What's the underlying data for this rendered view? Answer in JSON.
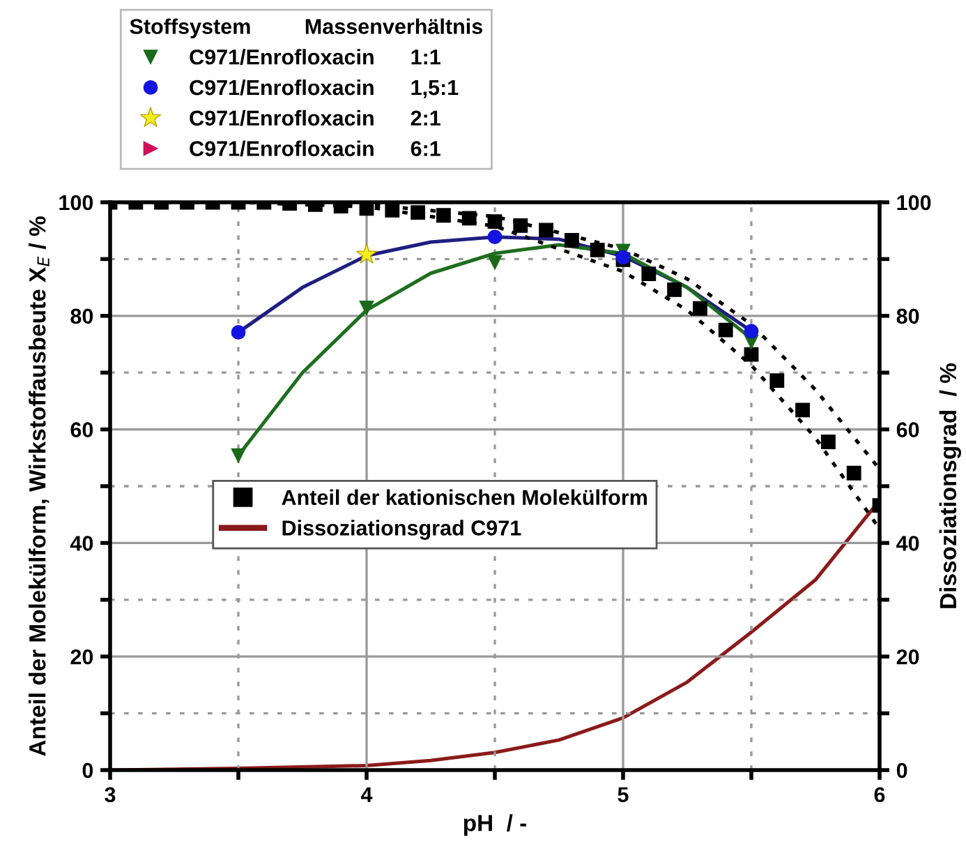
{
  "chart_data": {
    "type": "scatter",
    "xlabel": "pH  / -",
    "ylabel": "Anteil der Molekülform, Wirkstoffausbeute X$_{E}$ / %",
    "y2label": "Dissoziationsgrad  / %",
    "legend_title": "Stoffsystem         Massenverhältnis",
    "legend": "top",
    "grid": true,
    "xlim": [
      3,
      6
    ],
    "xticks": [
      3,
      {
        "value": 3.5,
        "label": null
      },
      4,
      {
        "value": 4.5,
        "label": null
      },
      5,
      {
        "value": 5.5,
        "label": null
      },
      6
    ],
    "ylim": [
      0,
      100
    ],
    "yticks": [
      0,
      {
        "value": 10,
        "label": null
      },
      20,
      {
        "value": 30,
        "label": null
      },
      40,
      {
        "value": 50,
        "label": null
      },
      60,
      {
        "value": 70,
        "label": null
      },
      80,
      {
        "value": 90,
        "label": null
      },
      100
    ],
    "y2lim": [
      0,
      100
    ],
    "y2ticks": [
      0,
      {
        "value": 10,
        "label": null
      },
      20,
      {
        "value": 30,
        "label": null
      },
      40,
      {
        "value": 50,
        "label": null
      },
      60,
      {
        "value": 70,
        "label": null
      },
      80,
      {
        "value": 90,
        "label": null
      },
      100
    ],
    "series": [
      {
        "type": "line",
        "color": "#1e1e80",
        "x": [
          3.5,
          3.75,
          4,
          4.25,
          4.5,
          4.75,
          5,
          5.25,
          5.5
        ],
        "values": [
          77.1,
          85,
          90.6,
          93,
          93.9,
          93.5,
          90.5,
          85,
          77.3
        ]
      },
      {
        "type": "line",
        "color": "#1e6e1e",
        "x": [
          3.5,
          3.75,
          4,
          4.25,
          4.5,
          4.75,
          5,
          5.25,
          5.5
        ],
        "values": [
          55.4,
          70,
          81,
          87.5,
          91,
          92.5,
          91,
          85,
          76
        ]
      },
      {
        "type": "line",
        "color": "#000000",
        "line_style": "dotted",
        "x": [
          3,
          3.5,
          4,
          4.5,
          5,
          5.25,
          5.5,
          5.75,
          6
        ],
        "values": [
          100,
          100,
          99.6,
          97.5,
          91.8,
          86.5,
          78.5,
          67,
          53
        ]
      },
      {
        "type": "line",
        "color": "#000000",
        "line_style": "dotted",
        "x": [
          3,
          3.5,
          4,
          4.5,
          5,
          5.25,
          5.5,
          5.75,
          6
        ],
        "values": [
          100,
          100,
          99.2,
          95.8,
          87.8,
          81,
          71.3,
          58.5,
          42.5
        ]
      },
      {
        "name": "Anteil der kationischen Molekülform",
        "marker": "square",
        "color": "#000000",
        "x": [
          3,
          3.1,
          3.2,
          3.3,
          3.4,
          3.5,
          3.6,
          3.7,
          3.8,
          3.9,
          4,
          4.1,
          4.2,
          4.3,
          4.4,
          4.5,
          4.6,
          4.7,
          4.8,
          4.9,
          5,
          5.1,
          5.2,
          5.3,
          5.4,
          5.5,
          5.6,
          5.7,
          5.8,
          5.9,
          6
        ],
        "values": [
          100,
          100,
          100,
          100,
          100,
          100,
          100,
          99.8,
          99.6,
          99.3,
          98.9,
          98.6,
          98.2,
          97.7,
          97.2,
          96.6,
          95.9,
          95.1,
          93.3,
          91.6,
          89.9,
          87.4,
          84.6,
          81.3,
          77.5,
          73.2,
          68.6,
          63.4,
          57.8,
          52.3,
          46.6
        ]
      },
      {
        "type": "line",
        "name": "Dissoziationsgrad C971",
        "axis": "y2",
        "color": "#8b1a1a",
        "x": [
          3,
          3.5,
          4,
          4.25,
          4.5,
          4.75,
          5,
          5.25,
          5.5,
          5.75,
          6
        ],
        "values": [
          0,
          0.3,
          0.8,
          1.7,
          3.1,
          5.3,
          9.2,
          15.5,
          24.3,
          33.5,
          47.5
        ]
      },
      {
        "name": "C971/Enrofloxacin      1:1",
        "marker": "triangle",
        "color": "#1a6a1a",
        "x": [
          3.5,
          4,
          4.5,
          5,
          5.5
        ],
        "values": [
          55.4,
          81.4,
          89.4,
          91.4,
          75.4
        ]
      },
      {
        "name": "C971/Enrofloxacin      1,5:1",
        "marker": "circle",
        "color": "#1414e0",
        "x": [
          3.5,
          4,
          4.5,
          5,
          5.5
        ],
        "values": [
          77.1,
          null,
          93.9,
          90.3,
          77.3
        ]
      },
      {
        "name": "C971/Enrofloxacin      2:1",
        "marker": "star",
        "color": "#f0f020",
        "x": [
          4
        ],
        "values": [
          90.8
        ]
      },
      {
        "name": "C971/Enrofloxacin      6:1",
        "marker": "triangle",
        "color": "#d0105a"
      }
    ]
  }
}
